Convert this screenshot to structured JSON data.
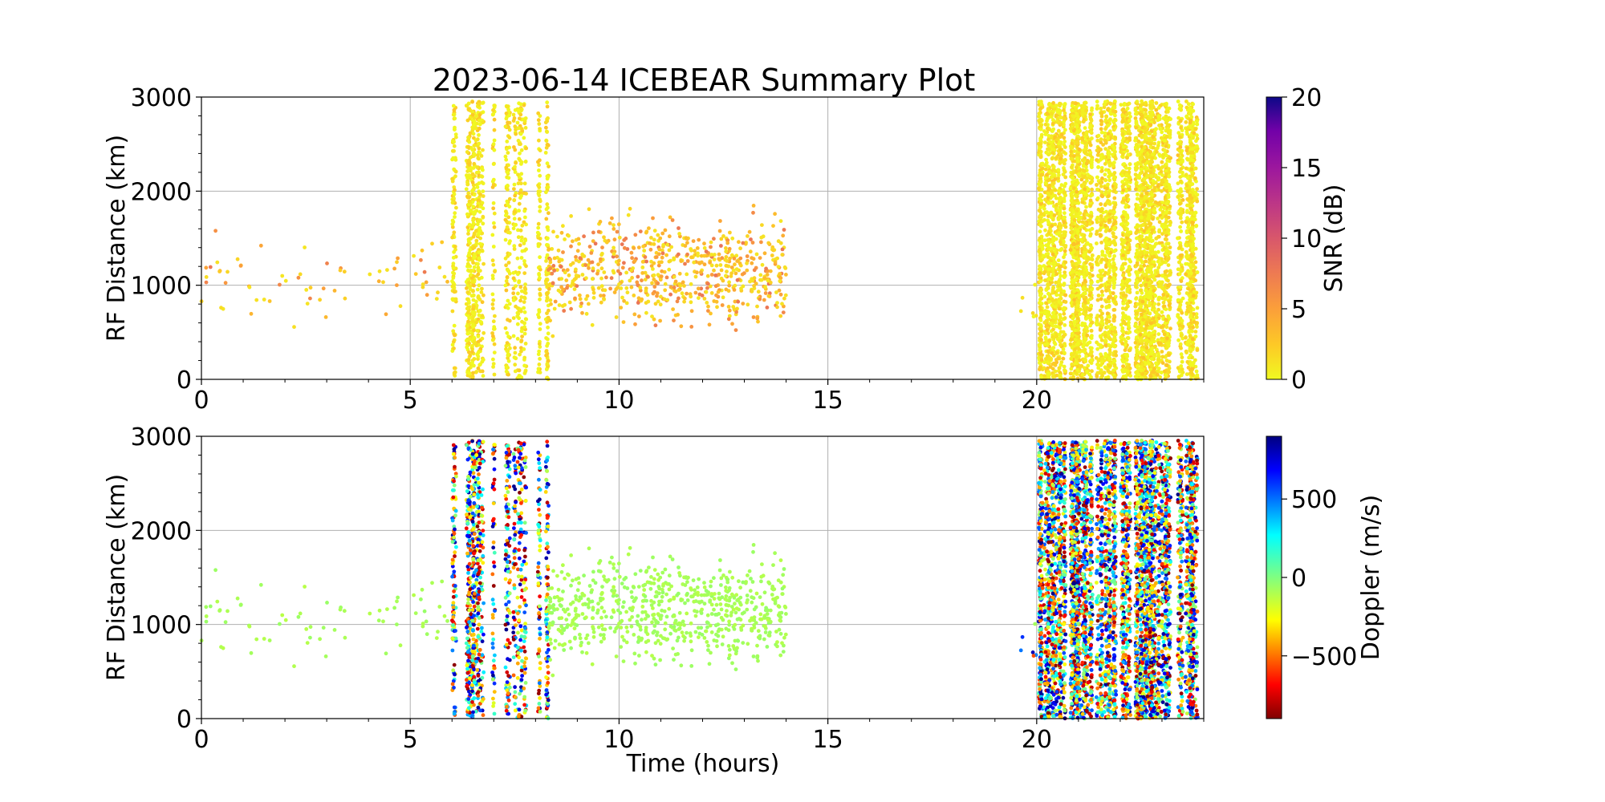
{
  "figure": {
    "title": "2023-06-14 ICEBEAR Summary Plot"
  },
  "chart_data": [
    {
      "type": "scatter",
      "panel": "top",
      "ylabel": "RF Distance (km)",
      "xlabel": "",
      "xlim": [
        0,
        24
      ],
      "ylim": [
        0,
        3000
      ],
      "x_ticks": [
        0,
        5,
        10,
        15,
        20
      ],
      "y_ticks": [
        0,
        1000,
        2000,
        3000
      ],
      "grid": true,
      "color_variable": "snr",
      "colorbar": {
        "label": "SNR (dB)",
        "colormap": "plasma_r",
        "range": [
          0,
          20
        ],
        "ticks": [
          0,
          5,
          10,
          15,
          20
        ]
      },
      "series": [
        {
          "description_regions": [
            {
              "x": [
                0,
                6
              ],
              "y": [
                350,
                1750
              ],
              "density": "sparse",
              "snr_range": [
                1,
                8
              ]
            },
            {
              "x": [
                6,
                8.3
              ],
              "y": [
                0,
                3000
              ],
              "density": "dense vertical stripes",
              "snr_range": [
                0,
                3
              ]
            },
            {
              "x": [
                8.3,
                14
              ],
              "y": [
                300,
                2000
              ],
              "density": "medium",
              "snr_range": [
                1,
                8
              ]
            },
            {
              "x": [
                19.6,
                20
              ],
              "y": [
                400,
                1200
              ],
              "density": "very sparse",
              "snr_range": [
                0,
                2
              ]
            },
            {
              "x": [
                20,
                24
              ],
              "y": [
                0,
                3000
              ],
              "density": "very dense vertical stripes",
              "snr_range": [
                0,
                3
              ]
            }
          ]
        }
      ]
    },
    {
      "type": "scatter",
      "panel": "bottom",
      "ylabel": "RF Distance (km)",
      "xlabel": "Time (hours)",
      "xlim": [
        0,
        24
      ],
      "ylim": [
        0,
        3000
      ],
      "x_ticks": [
        0,
        5,
        10,
        15,
        20
      ],
      "y_ticks": [
        0,
        1000,
        2000,
        3000
      ],
      "grid": true,
      "color_variable": "doppler",
      "colorbar": {
        "label": "Doppler (m/s)",
        "colormap": "jet_r",
        "range": [
          -900,
          900
        ],
        "ticks": [
          -500,
          0,
          500
        ],
        "tick_labels": [
          "−500",
          "0",
          "500"
        ]
      },
      "series": [
        {
          "description_regions": [
            {
              "x": [
                0,
                6
              ],
              "y": [
                350,
                1750
              ],
              "density": "sparse",
              "doppler_range": [
                -100,
                -40
              ]
            },
            {
              "x": [
                6,
                8.3
              ],
              "y": [
                0,
                3000
              ],
              "density": "dense vertical stripes",
              "doppler_range": [
                -900,
                900
              ]
            },
            {
              "x": [
                8.3,
                14
              ],
              "y": [
                300,
                2000
              ],
              "density": "medium",
              "doppler_range": [
                -100,
                -40
              ]
            },
            {
              "x": [
                19.6,
                20
              ],
              "y": [
                400,
                1200
              ],
              "density": "very sparse",
              "doppler_range": [
                -900,
                900
              ]
            },
            {
              "x": [
                20,
                24
              ],
              "y": [
                0,
                3000
              ],
              "density": "very dense vertical stripes",
              "doppler_range": [
                -900,
                900
              ]
            }
          ]
        }
      ]
    }
  ]
}
